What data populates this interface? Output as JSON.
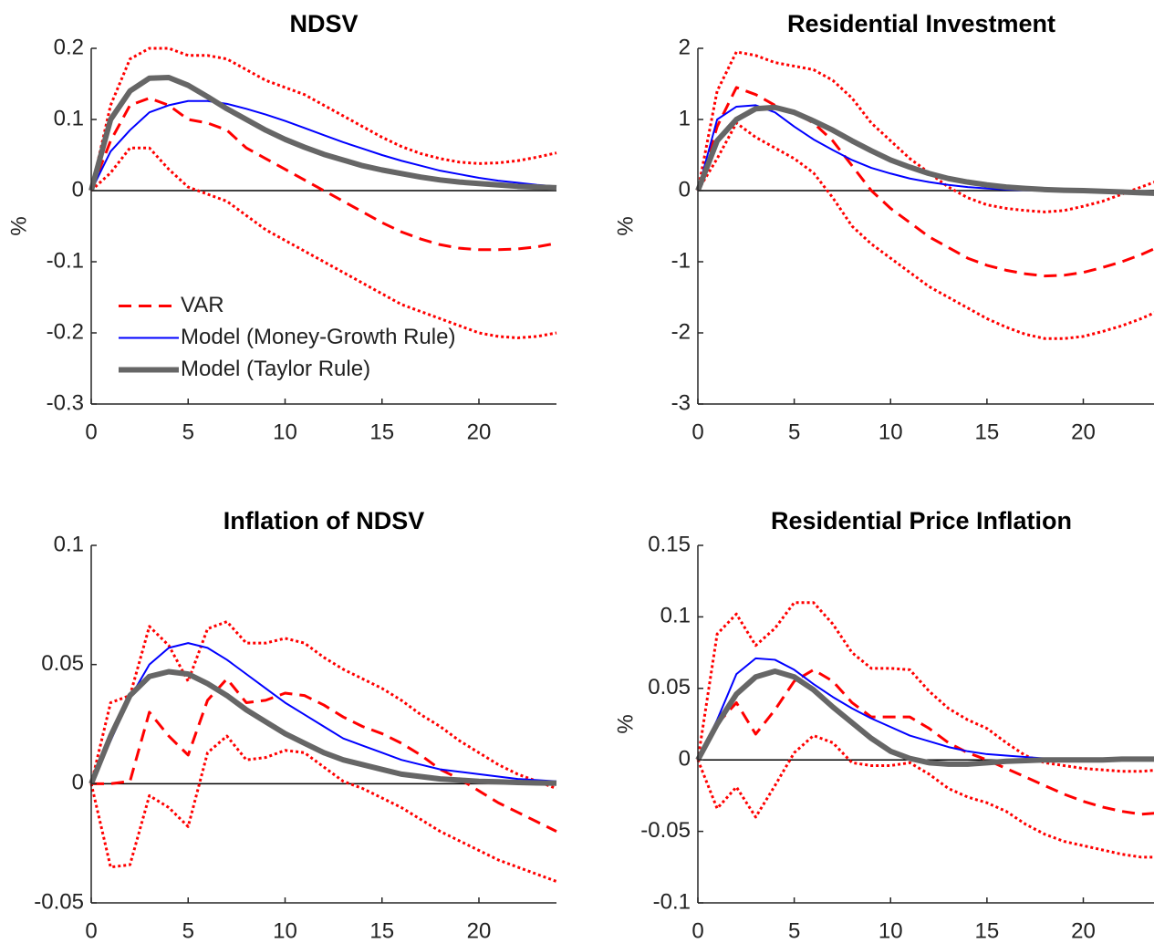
{
  "chart_data": [
    {
      "type": "line",
      "title": "NDSV",
      "ylabel": "%",
      "x": [
        0,
        1,
        2,
        3,
        4,
        5,
        6,
        7,
        8,
        9,
        10,
        11,
        12,
        13,
        14,
        15,
        16,
        17,
        18,
        19,
        20,
        21,
        22,
        23,
        24
      ],
      "xlim": [
        0,
        24
      ],
      "xticks": [
        0,
        5,
        10,
        15,
        20
      ],
      "ylim": [
        -0.3,
        0.2
      ],
      "yticks": [
        -0.3,
        -0.2,
        -0.1,
        0,
        0.1,
        0.2
      ],
      "legend": "lower left",
      "series": [
        {
          "color": "#ff0000",
          "style": "dotted",
          "width": 3,
          "values": [
            0,
            0.12,
            0.185,
            0.2,
            0.2,
            0.19,
            0.19,
            0.185,
            0.17,
            0.155,
            0.145,
            0.135,
            0.12,
            0.105,
            0.09,
            0.075,
            0.062,
            0.052,
            0.045,
            0.04,
            0.038,
            0.039,
            0.042,
            0.047,
            0.053
          ]
        },
        {
          "color": "#ff0000",
          "style": "dotted",
          "width": 3,
          "values": [
            0,
            0.025,
            0.06,
            0.06,
            0.03,
            0.005,
            -0.005,
            -0.015,
            -0.035,
            -0.055,
            -0.07,
            -0.085,
            -0.1,
            -0.115,
            -0.13,
            -0.145,
            -0.16,
            -0.17,
            -0.18,
            -0.19,
            -0.2,
            -0.205,
            -0.207,
            -0.205,
            -0.2
          ]
        },
        {
          "name": "VAR",
          "color": "#ff0000",
          "style": "dashed",
          "width": 3,
          "values": [
            0,
            0.07,
            0.12,
            0.13,
            0.12,
            0.1,
            0.095,
            0.085,
            0.06,
            0.045,
            0.03,
            0.015,
            0,
            -0.015,
            -0.03,
            -0.045,
            -0.058,
            -0.068,
            -0.076,
            -0.081,
            -0.083,
            -0.083,
            -0.082,
            -0.079,
            -0.074
          ]
        },
        {
          "name": "Model (Money-Growth Rule)",
          "color": "#0000ff",
          "style": "solid",
          "width": 2,
          "values": [
            0,
            0.055,
            0.085,
            0.11,
            0.12,
            0.126,
            0.126,
            0.122,
            0.115,
            0.107,
            0.098,
            0.088,
            0.078,
            0.068,
            0.059,
            0.05,
            0.042,
            0.035,
            0.028,
            0.023,
            0.018,
            0.014,
            0.011,
            0.008,
            0.006
          ]
        },
        {
          "name": "Model (Taylor Rule)",
          "color": "#666666",
          "style": "solid",
          "width": 6,
          "values": [
            0,
            0.1,
            0.14,
            0.158,
            0.159,
            0.148,
            0.132,
            0.115,
            0.1,
            0.085,
            0.072,
            0.061,
            0.051,
            0.043,
            0.035,
            0.029,
            0.024,
            0.019,
            0.015,
            0.012,
            0.01,
            0.008,
            0.006,
            0.005,
            0.004
          ]
        }
      ]
    },
    {
      "type": "line",
      "title": "Residential Investment",
      "ylabel": "%",
      "x": [
        0,
        1,
        2,
        3,
        4,
        5,
        6,
        7,
        8,
        9,
        10,
        11,
        12,
        13,
        14,
        15,
        16,
        17,
        18,
        19,
        20,
        21,
        22,
        23,
        24
      ],
      "xlim": [
        0,
        24
      ],
      "xticks": [
        0,
        5,
        10,
        15,
        20
      ],
      "ylim": [
        -3,
        2
      ],
      "yticks": [
        -3,
        -2,
        -1,
        0,
        1,
        2
      ],
      "series": [
        {
          "color": "#ff0000",
          "style": "dotted",
          "width": 3,
          "values": [
            0,
            1.4,
            1.95,
            1.9,
            1.8,
            1.75,
            1.7,
            1.55,
            1.3,
            0.95,
            0.7,
            0.45,
            0.25,
            0.05,
            -0.1,
            -0.2,
            -0.25,
            -0.28,
            -0.3,
            -0.28,
            -0.22,
            -0.15,
            -0.05,
            0.05,
            0.15
          ]
        },
        {
          "color": "#ff0000",
          "style": "dotted",
          "width": 3,
          "values": [
            0,
            0.45,
            0.95,
            0.75,
            0.6,
            0.45,
            0.25,
            -0.1,
            -0.5,
            -0.75,
            -0.95,
            -1.15,
            -1.35,
            -1.5,
            -1.65,
            -1.8,
            -1.92,
            -2.02,
            -2.08,
            -2.08,
            -2.05,
            -1.98,
            -1.9,
            -1.8,
            -1.68
          ]
        },
        {
          "color": "#ff0000",
          "style": "dashed",
          "width": 3,
          "values": [
            0,
            0.9,
            1.45,
            1.35,
            1.2,
            1.1,
            0.95,
            0.7,
            0.35,
            0,
            -0.25,
            -0.45,
            -0.65,
            -0.8,
            -0.95,
            -1.05,
            -1.12,
            -1.17,
            -1.2,
            -1.19,
            -1.15,
            -1.08,
            -1,
            -0.9,
            -0.78
          ]
        },
        {
          "color": "#0000ff",
          "style": "solid",
          "width": 2,
          "values": [
            0,
            1,
            1.18,
            1.2,
            1.1,
            0.9,
            0.72,
            0.57,
            0.43,
            0.32,
            0.24,
            0.17,
            0.12,
            0.08,
            0.05,
            0.03,
            0.015,
            0.005,
            0,
            -0.005,
            -0.01,
            -0.015,
            -0.02,
            -0.02,
            -0.02
          ]
        },
        {
          "color": "#666666",
          "style": "solid",
          "width": 6,
          "values": [
            0,
            0.7,
            1,
            1.15,
            1.17,
            1.1,
            0.98,
            0.85,
            0.7,
            0.56,
            0.43,
            0.33,
            0.24,
            0.17,
            0.12,
            0.08,
            0.05,
            0.03,
            0.015,
            0.005,
            0,
            -0.01,
            -0.02,
            -0.03,
            -0.04
          ]
        }
      ]
    },
    {
      "type": "line",
      "title": "Inflation of NDSV",
      "x": [
        0,
        1,
        2,
        3,
        4,
        5,
        6,
        7,
        8,
        9,
        10,
        11,
        12,
        13,
        14,
        15,
        16,
        17,
        18,
        19,
        20,
        21,
        22,
        23,
        24
      ],
      "xlim": [
        0,
        24
      ],
      "xticks": [
        0,
        5,
        10,
        15,
        20
      ],
      "ylim": [
        -0.05,
        0.1
      ],
      "yticks": [
        -0.05,
        0,
        0.05,
        0.1
      ],
      "series": [
        {
          "color": "#ff0000",
          "style": "dotted",
          "width": 3,
          "values": [
            0,
            0.034,
            0.037,
            0.066,
            0.058,
            0.043,
            0.065,
            0.068,
            0.059,
            0.059,
            0.061,
            0.059,
            0.053,
            0.048,
            0.044,
            0.04,
            0.035,
            0.029,
            0.024,
            0.018,
            0.013,
            0.008,
            0.004,
            0.001,
            -0.002
          ]
        },
        {
          "color": "#ff0000",
          "style": "dotted",
          "width": 3,
          "values": [
            0,
            -0.035,
            -0.034,
            -0.005,
            -0.01,
            -0.018,
            0.013,
            0.02,
            0.01,
            0.011,
            0.014,
            0.013,
            0.007,
            0.001,
            -0.002,
            -0.006,
            -0.01,
            -0.015,
            -0.02,
            -0.024,
            -0.028,
            -0.032,
            -0.035,
            -0.038,
            -0.041
          ]
        },
        {
          "color": "#ff0000",
          "style": "dashed",
          "width": 3,
          "values": [
            0,
            0,
            0.001,
            0.03,
            0.02,
            0.012,
            0.035,
            0.044,
            0.034,
            0.035,
            0.038,
            0.037,
            0.033,
            0.028,
            0.024,
            0.021,
            0.017,
            0.012,
            0.006,
            0.002,
            -0.003,
            -0.008,
            -0.012,
            -0.016,
            -0.02
          ]
        },
        {
          "color": "#0000ff",
          "style": "solid",
          "width": 2,
          "values": [
            0,
            0.018,
            0.036,
            0.05,
            0.057,
            0.059,
            0.057,
            0.052,
            0.046,
            0.04,
            0.034,
            0.029,
            0.024,
            0.019,
            0.016,
            0.013,
            0.01,
            0.008,
            0.006,
            0.005,
            0.004,
            0.003,
            0.002,
            0.0015,
            0.001
          ]
        },
        {
          "color": "#666666",
          "style": "solid",
          "width": 6,
          "values": [
            0,
            0.02,
            0.037,
            0.045,
            0.047,
            0.046,
            0.042,
            0.037,
            0.031,
            0.026,
            0.021,
            0.017,
            0.013,
            0.01,
            0.008,
            0.006,
            0.004,
            0.003,
            0.002,
            0.0015,
            0.001,
            0.0008,
            0.0005,
            0.0003,
            0.0002
          ]
        }
      ]
    },
    {
      "type": "line",
      "title": "Residential Price Inflation",
      "ylabel": "%",
      "x": [
        0,
        1,
        2,
        3,
        4,
        5,
        6,
        7,
        8,
        9,
        10,
        11,
        12,
        13,
        14,
        15,
        16,
        17,
        18,
        19,
        20,
        21,
        22,
        23,
        24
      ],
      "xlim": [
        0,
        24
      ],
      "xticks": [
        0,
        5,
        10,
        15,
        20
      ],
      "ylim": [
        -0.1,
        0.15
      ],
      "yticks": [
        -0.1,
        -0.05,
        0,
        0.05,
        0.1,
        0.15
      ],
      "series": [
        {
          "color": "#ff0000",
          "style": "dotted",
          "width": 3,
          "values": [
            0,
            0.088,
            0.102,
            0.08,
            0.092,
            0.11,
            0.11,
            0.095,
            0.075,
            0.064,
            0.064,
            0.063,
            0.048,
            0.036,
            0.028,
            0.022,
            0.012,
            0.003,
            -0.002,
            -0.004,
            -0.006,
            -0.007,
            -0.008,
            -0.008,
            -0.007
          ]
        },
        {
          "color": "#ff0000",
          "style": "dotted",
          "width": 3,
          "values": [
            0,
            -0.034,
            -0.019,
            -0.04,
            -0.018,
            0.005,
            0.017,
            0.012,
            -0.002,
            -0.004,
            -0.004,
            -0.002,
            -0.01,
            -0.02,
            -0.026,
            -0.03,
            -0.036,
            -0.045,
            -0.052,
            -0.057,
            -0.06,
            -0.063,
            -0.066,
            -0.068,
            -0.068
          ]
        },
        {
          "color": "#ff0000",
          "style": "dashed",
          "width": 3,
          "values": [
            0,
            0.025,
            0.04,
            0.018,
            0.035,
            0.055,
            0.063,
            0.055,
            0.04,
            0.03,
            0.03,
            0.03,
            0.022,
            0.012,
            0.005,
            0,
            -0.006,
            -0.012,
            -0.018,
            -0.024,
            -0.029,
            -0.033,
            -0.036,
            -0.038,
            -0.037
          ]
        },
        {
          "color": "#0000ff",
          "style": "solid",
          "width": 2,
          "values": [
            0,
            0.028,
            0.06,
            0.071,
            0.07,
            0.063,
            0.053,
            0.044,
            0.036,
            0.029,
            0.023,
            0.017,
            0.013,
            0.009,
            0.006,
            0.004,
            0.003,
            0.002,
            0.001,
            0.001,
            0.0005,
            0.0005,
            0.0005,
            0.0005,
            0.0005
          ]
        },
        {
          "color": "#666666",
          "style": "solid",
          "width": 6,
          "values": [
            0,
            0.025,
            0.046,
            0.058,
            0.062,
            0.058,
            0.049,
            0.037,
            0.026,
            0.015,
            0.006,
            0.001,
            -0.002,
            -0.003,
            -0.003,
            -0.002,
            -0.001,
            -0.0005,
            0,
            0,
            0,
            0,
            0.0005,
            0.0005,
            0.0005
          ]
        }
      ]
    }
  ]
}
